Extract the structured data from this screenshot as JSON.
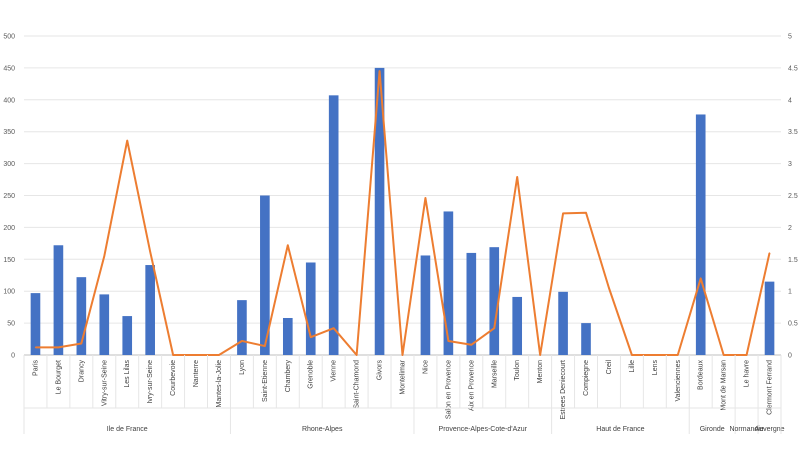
{
  "chart_data": {
    "type": "bar",
    "colors": {
      "bars": "#4472c4",
      "line": "#ed7d31",
      "grid": "#e6e6e6",
      "axis": "#bfbfbf"
    },
    "grid": true,
    "y_left": {
      "min": 0,
      "max": 500,
      "ticks": [
        "0",
        "50",
        "100",
        "150",
        "200",
        "250",
        "300",
        "350",
        "400",
        "450",
        "500"
      ]
    },
    "y_right": {
      "min": 0,
      "max": 5,
      "ticks": [
        "0",
        "0.5",
        "1",
        "1.5",
        "2",
        "2.5",
        "3",
        "3.5",
        "4",
        "4.5",
        "5"
      ]
    },
    "categories": [
      "Paris",
      "Le Bourget",
      "Drancy",
      "Vitry-sur-Seine",
      "Les Lilas",
      "Ivry-sur-Seine",
      "Courbevoie",
      "Nanterre",
      "Mantes-la-Jolie",
      "Lyon",
      "Saint-Etienne",
      "Chambery",
      "Grenoble",
      "Vienne",
      "Saint-Chamond",
      "Givors",
      "Montelimar",
      "Nice",
      "Salon en Provence",
      "Aix en Provence",
      "Marseille",
      "Toulon",
      "Menton",
      "Estrees Deniecourt",
      "Compiegne",
      "Creil",
      "Lille",
      "Lens",
      "Valenciennes",
      "Bordeaux",
      "Mont de Marsan",
      "Le havre",
      "Clermont Ferrand"
    ],
    "groups": [
      {
        "label": "Ile de France",
        "count": 9
      },
      {
        "label": "Rhone-Alpes",
        "count": 8
      },
      {
        "label": "Provence-Alpes-Cote-d'Azur",
        "count": 6
      },
      {
        "label": "Haut de France",
        "count": 6
      },
      {
        "label": "Gironde",
        "count": 2
      },
      {
        "label": "Normandie",
        "count": 1
      },
      {
        "label": "Auvergne",
        "count": 1
      }
    ],
    "series": [
      {
        "type": "bar",
        "axis": "left",
        "values": [
          97,
          172,
          122,
          95,
          61,
          141,
          0,
          0,
          0,
          86,
          250,
          58,
          145,
          407,
          0,
          450,
          0,
          156,
          225,
          160,
          169,
          91,
          0,
          99,
          50,
          0,
          0,
          0,
          0,
          377,
          0,
          0,
          115
        ]
      },
      {
        "type": "line",
        "axis": "right",
        "values": [
          0.12,
          0.12,
          0.18,
          1.55,
          3.36,
          1.62,
          0,
          0,
          0,
          0.22,
          0.14,
          1.72,
          0.28,
          0.42,
          0,
          4.45,
          0,
          2.46,
          0.22,
          0.16,
          0.42,
          2.79,
          0,
          2.22,
          2.23,
          1.05,
          0,
          0,
          0,
          1.2,
          0,
          0,
          1.6
        ]
      }
    ]
  }
}
